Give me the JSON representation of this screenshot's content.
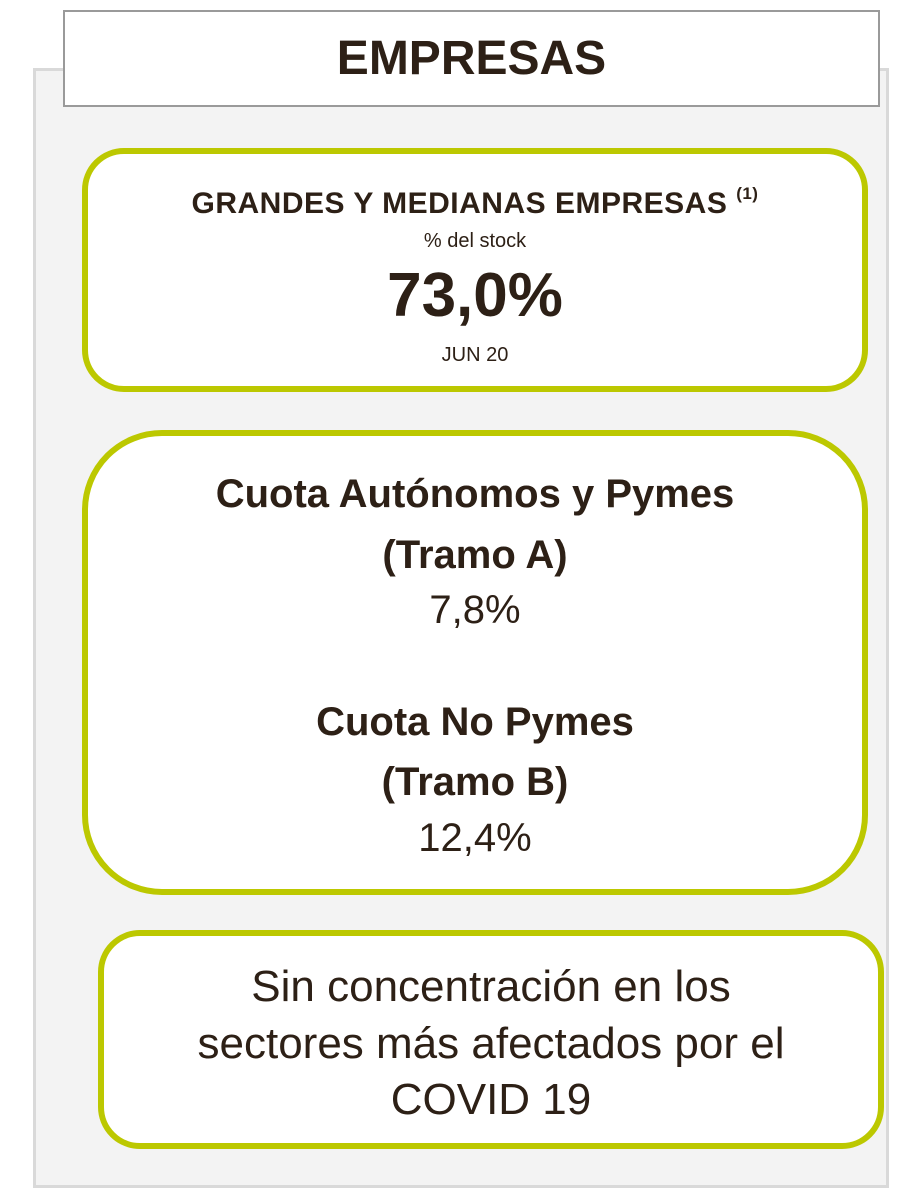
{
  "header": {
    "title": "EMPRESAS"
  },
  "cards": [
    {
      "title": "GRANDES Y MEDIANAS EMPRESAS",
      "footnote": "(1)",
      "note": "% del stock",
      "value": "73,0%",
      "date": "JUN 20"
    },
    {
      "items": [
        {
          "title": [
            "Cuota Autónomos y Pymes",
            "(Tramo A)"
          ],
          "value": "7,8%"
        },
        {
          "title": [
            "Cuota No Pymes",
            "(Tramo B)"
          ],
          "value": "12,4%"
        }
      ]
    },
    {
      "lines": [
        "Sin concentración en los",
        "sectores más afectados por el",
        "COVID 19"
      ]
    }
  ]
}
